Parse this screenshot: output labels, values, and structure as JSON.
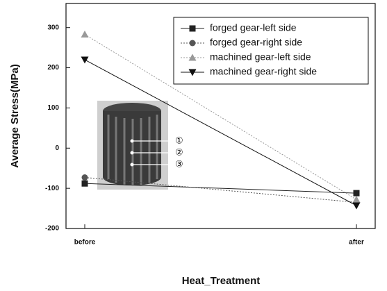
{
  "chart_data": {
    "type": "line",
    "xlabel": "Heat_Treatment",
    "ylabel": "Average Stress(MPa)",
    "categories": [
      "before",
      "after"
    ],
    "series": [
      {
        "name": "forged gear-left side",
        "color": "#222222",
        "marker": "square",
        "linestyle": "solid",
        "values": [
          -88,
          -112
        ]
      },
      {
        "name": "forged gear-right side",
        "color": "#555555",
        "marker": "circle",
        "linestyle": "dotted",
        "values": [
          -73,
          -135
        ]
      },
      {
        "name": "machined gear-left side",
        "color": "#999999",
        "marker": "triangle-up",
        "linestyle": "dotted",
        "values": [
          283,
          -128
        ]
      },
      {
        "name": "machined gear-right side",
        "color": "#111111",
        "marker": "triangle-down",
        "linestyle": "solid",
        "values": [
          220,
          -143
        ]
      }
    ],
    "ylim": [
      -200,
      360
    ],
    "yticks": [
      -200,
      -100,
      0,
      100,
      200,
      300
    ],
    "legend": "upper right",
    "inset_labels": [
      "①",
      "②",
      "③"
    ]
  }
}
